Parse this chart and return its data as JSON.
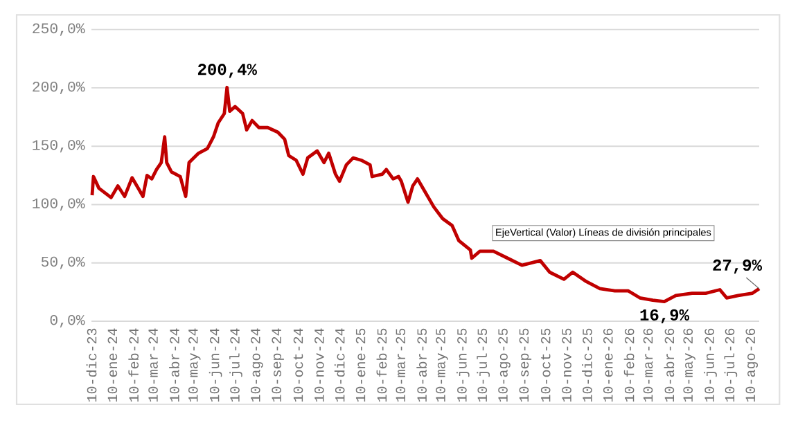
{
  "chart_data": {
    "type": "line",
    "grid": "y",
    "marker": "none",
    "line_style": "solid",
    "xlim": [
      "2023-12-10",
      "2026-08-21"
    ],
    "ylim": [
      0,
      250
    ],
    "yticks": [
      {
        "value": 0,
        "label": "0,0%"
      },
      {
        "value": 50,
        "label": "50,0%"
      },
      {
        "value": 100,
        "label": "100,0%"
      },
      {
        "value": 150,
        "label": "150,0%"
      },
      {
        "value": 200,
        "label": "200,0%"
      },
      {
        "value": 250,
        "label": "250,0%"
      }
    ],
    "xticks": [
      {
        "value": "2023-12-10",
        "label": "10-dic-23"
      },
      {
        "value": "2024-01-10",
        "label": "10-ene-24"
      },
      {
        "value": "2024-02-10",
        "label": "10-feb-24"
      },
      {
        "value": "2024-03-10",
        "label": "10-mar-24"
      },
      {
        "value": "2024-04-10",
        "label": "10-abr-24"
      },
      {
        "value": "2024-05-10",
        "label": "10-may-24"
      },
      {
        "value": "2024-06-10",
        "label": "10-jun-24"
      },
      {
        "value": "2024-07-10",
        "label": "10-jul-24"
      },
      {
        "value": "2024-08-10",
        "label": "10-ago-24"
      },
      {
        "value": "2024-09-10",
        "label": "10-sep-24"
      },
      {
        "value": "2024-10-10",
        "label": "10-oct-24"
      },
      {
        "value": "2024-11-10",
        "label": "10-nov-24"
      },
      {
        "value": "2024-12-10",
        "label": "10-dic-24"
      },
      {
        "value": "2025-01-10",
        "label": "10-ene-25"
      },
      {
        "value": "2025-02-10",
        "label": "10-feb-25"
      },
      {
        "value": "2025-03-10",
        "label": "10-mar-25"
      },
      {
        "value": "2025-04-10",
        "label": "10-abr-25"
      },
      {
        "value": "2025-05-10",
        "label": "10-may-25"
      },
      {
        "value": "2025-06-10",
        "label": "10-jun-25"
      },
      {
        "value": "2025-07-10",
        "label": "10-jul-25"
      },
      {
        "value": "2025-08-10",
        "label": "10-ago-25"
      },
      {
        "value": "2025-09-10",
        "label": "10-sep-25"
      },
      {
        "value": "2025-10-10",
        "label": "10-oct-25"
      },
      {
        "value": "2025-11-10",
        "label": "10-nov-25"
      },
      {
        "value": "2025-12-10",
        "label": "10-dic-25"
      },
      {
        "value": "2026-01-10",
        "label": "10-ene-26"
      },
      {
        "value": "2026-02-10",
        "label": "10-feb-26"
      },
      {
        "value": "2026-03-10",
        "label": "10-mar-26"
      },
      {
        "value": "2026-04-10",
        "label": "10-abr-26"
      },
      {
        "value": "2026-05-10",
        "label": "10-may-26"
      },
      {
        "value": "2026-06-10",
        "label": "10-jun-26"
      },
      {
        "value": "2026-07-10",
        "label": "10-jul-26"
      },
      {
        "value": "2026-08-10",
        "label": "10-ago-26"
      }
    ],
    "series": [
      {
        "color": "#c00000",
        "x": [
          "2023-12-11",
          "2023-12-13",
          "2023-12-21",
          "2024-01-08",
          "2024-01-18",
          "2024-01-28",
          "2024-02-08",
          "2024-02-18",
          "2024-02-24",
          "2024-03-01",
          "2024-03-08",
          "2024-03-15",
          "2024-03-22",
          "2024-03-27",
          "2024-03-30",
          "2024-04-06",
          "2024-04-19",
          "2024-04-27",
          "2024-05-02",
          "2024-05-16",
          "2024-05-29",
          "2024-06-07",
          "2024-06-14",
          "2024-06-23",
          "2024-06-27",
          "2024-07-01",
          "2024-07-09",
          "2024-07-20",
          "2024-07-26",
          "2024-08-03",
          "2024-08-13",
          "2024-08-26",
          "2024-09-10",
          "2024-09-20",
          "2024-09-26",
          "2024-10-07",
          "2024-10-17",
          "2024-10-24",
          "2024-11-07",
          "2024-11-17",
          "2024-11-24",
          "2024-12-04",
          "2024-12-10",
          "2024-12-20",
          "2024-12-30",
          "2025-01-11",
          "2025-01-24",
          "2025-01-27",
          "2025-02-11",
          "2025-02-17",
          "2025-02-27",
          "2025-03-07",
          "2025-03-11",
          "2025-03-21",
          "2025-03-28",
          "2025-04-04",
          "2025-04-14",
          "2025-04-28",
          "2025-05-11",
          "2025-05-25",
          "2025-06-04",
          "2025-06-21",
          "2025-06-23",
          "2025-07-05",
          "2025-07-25",
          "2025-08-15",
          "2025-09-05",
          "2025-10-02",
          "2025-10-16",
          "2025-11-06",
          "2025-11-19",
          "2025-12-09",
          "2025-12-29",
          "2026-01-20",
          "2026-02-09",
          "2026-02-26",
          "2026-03-17",
          "2026-04-03",
          "2026-04-20",
          "2026-05-14",
          "2026-06-03",
          "2026-06-24",
          "2026-07-04",
          "2026-07-21",
          "2026-08-11",
          "2026-08-21"
        ],
        "values": [
          108,
          124,
          114,
          106,
          116,
          107,
          123,
          113,
          107,
          125,
          122,
          130,
          136,
          158,
          136,
          128,
          124,
          107,
          136,
          144,
          148,
          158,
          170,
          178,
          200.4,
          180,
          184,
          178,
          164,
          172,
          166,
          166,
          162,
          156,
          142,
          138,
          126,
          140,
          146,
          136,
          144,
          126,
          120,
          134,
          140,
          138,
          134,
          124,
          126,
          130,
          122,
          124,
          120,
          102,
          116,
          122,
          112,
          98,
          88,
          82,
          69,
          61,
          54,
          60,
          60,
          54,
          48,
          52,
          42,
          36,
          42,
          34,
          28,
          26,
          26,
          20,
          18,
          16.9,
          22,
          24,
          24,
          27,
          20,
          22,
          24,
          27.9
        ]
      }
    ],
    "annotations": [
      {
        "text": "200,4%",
        "x": "2024-06-27",
        "y": 200.4
      },
      {
        "text": "16,9%",
        "x": "2026-04-03",
        "y": 16.9
      },
      {
        "text": "27,9%",
        "x": "2026-08-21",
        "y": 27.9
      },
      "EjeVertical (Valor)  Líneas de división principales"
    ]
  }
}
